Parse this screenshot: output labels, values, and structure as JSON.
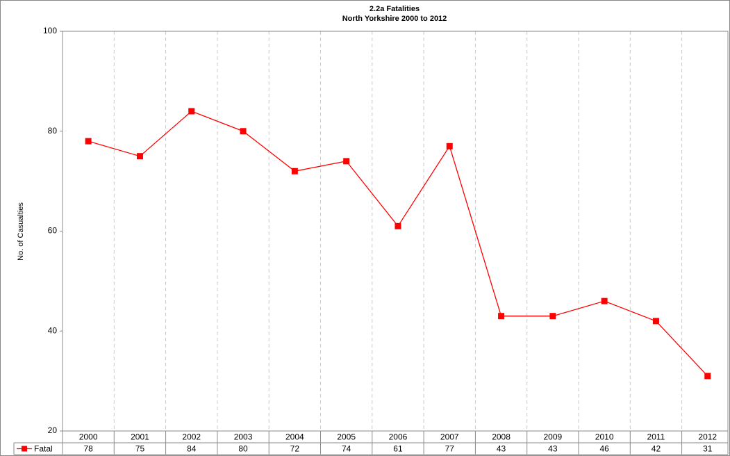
{
  "chart_data": {
    "type": "line",
    "title": "2.2a  Fatalities",
    "subtitle": "North Yorkshire 2000 to 2012",
    "y_label": "No. of Casualties",
    "categories": [
      "2000",
      "2001",
      "2002",
      "2003",
      "2004",
      "2005",
      "2006",
      "2007",
      "2008",
      "2009",
      "2010",
      "2011",
      "2012"
    ],
    "series": [
      {
        "name": "Fatal",
        "color": "#ff0000",
        "values": [
          78,
          75,
          84,
          80,
          72,
          74,
          61,
          77,
          43,
          43,
          46,
          42,
          31
        ]
      }
    ],
    "ylim": [
      20,
      100
    ],
    "yticks": [
      20,
      40,
      60,
      80,
      100
    ],
    "grid": false
  }
}
